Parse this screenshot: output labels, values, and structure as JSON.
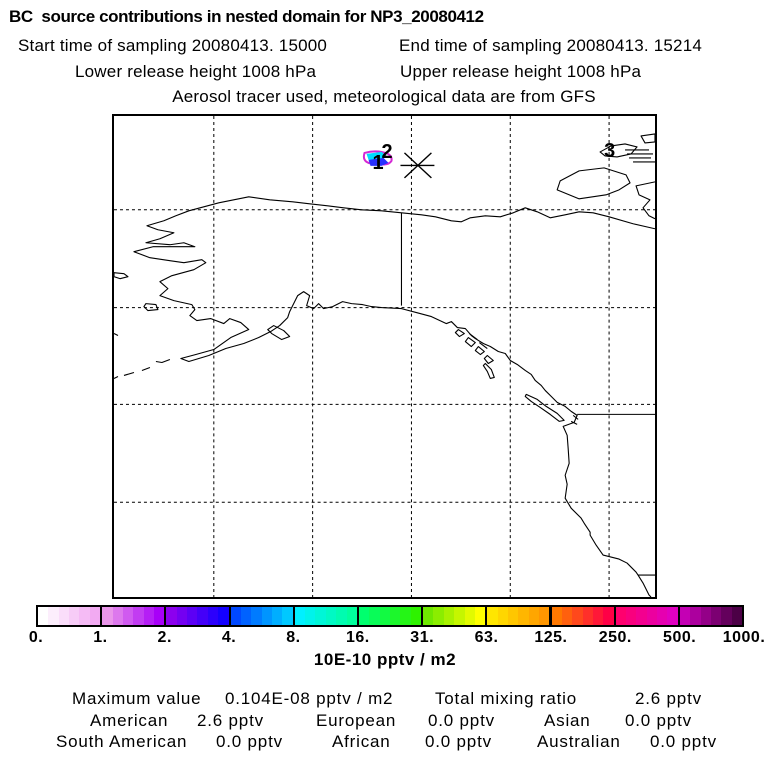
{
  "header": {
    "title": "BC  source contributions in nested domain for NP3_20080412",
    "start_time": "Start time of sampling 20080413. 15000",
    "end_time": "End time of sampling 20080413. 15214",
    "lower_release": "Lower release height 1008 hPa",
    "upper_release": "Upper release height 1008 hPa",
    "tracer_note": "Aerosol tracer used, meteorological data are from GFS"
  },
  "map": {
    "labels": [
      "1",
      "2",
      "3"
    ],
    "plume_colors": {
      "outer": "#d428d4",
      "mid": "#2830ff",
      "inner": "#00dcff"
    }
  },
  "colorbar": {
    "tick_labels": [
      "0.",
      "1.",
      "2.",
      "4.",
      "8.",
      "16.",
      "31.",
      "63.",
      "125.",
      "250.",
      "500.",
      "1000."
    ],
    "units_label": "10E-10 pptv / m2",
    "steps_per_segment": 6,
    "segments": [
      {
        "from": "#ffffff",
        "to": "#f2aaf2"
      },
      {
        "from": "#ea96ea",
        "to": "#a800f8"
      },
      {
        "from": "#8c00ee",
        "to": "#1400ff"
      },
      {
        "from": "#0048ff",
        "to": "#00c8ff"
      },
      {
        "from": "#00f0ff",
        "to": "#00ff9c"
      },
      {
        "from": "#00ff6e",
        "to": "#2ef200"
      },
      {
        "from": "#6ee800",
        "to": "#ffff00"
      },
      {
        "from": "#ffe600",
        "to": "#ff9600"
      },
      {
        "from": "#ff7800",
        "to": "#ff0046"
      },
      {
        "from": "#ff006e",
        "to": "#e000c0"
      },
      {
        "from": "#c400b4",
        "to": "#4c0046"
      }
    ]
  },
  "stats": {
    "maximum_label": "Maximum value",
    "maximum_value": "0.104E-08 pptv / m2",
    "total_label": "Total mixing ratio",
    "total_value": "2.6 pptv",
    "regions": [
      {
        "label": "American",
        "value": "2.6 pptv"
      },
      {
        "label": "European",
        "value": "0.0 pptv"
      },
      {
        "label": "Asian",
        "value": "0.0 pptv"
      },
      {
        "label": "South American",
        "value": "0.0 pptv"
      },
      {
        "label": "African",
        "value": "0.0 pptv"
      },
      {
        "label": "Australian",
        "value": "0.0 pptv"
      }
    ]
  },
  "chart_data": {
    "type": "heatmap",
    "title": "BC  source contributions in nested domain for NP3_20080412",
    "units": "10E-10 pptv / m2",
    "colorbar_ticks": [
      0,
      1,
      2,
      4,
      8,
      16,
      31,
      63,
      125,
      250,
      500,
      1000
    ],
    "colorbar_scale": "logarithmic",
    "maximum_value": "0.104E-08 pptv / m2",
    "total_mixing_ratio_pptv": 2.6,
    "region_contributions_pptv": {
      "American": 2.6,
      "European": 0.0,
      "Asian": 0.0,
      "South American": 0.0,
      "African": 0.0,
      "Australian": 0.0
    },
    "plume": {
      "contour_labels": [
        1,
        2
      ],
      "approx_location": "near 143W, 75N (Arctic Ocean north of Alaska/Canada)",
      "levels_shown": [
        "magenta ~1",
        "blue ~2-4",
        "cyan ~8-16"
      ]
    },
    "station_marker": {
      "symbol": "asterisk",
      "approx_location": "139W, 74.6N",
      "nearby_label": "3 at ~120W, 77N"
    },
    "map_extent": {
      "lon_W": [
        170,
        115
      ],
      "lat_N": [
        30,
        80
      ],
      "grid_spacing_deg": 10
    }
  }
}
